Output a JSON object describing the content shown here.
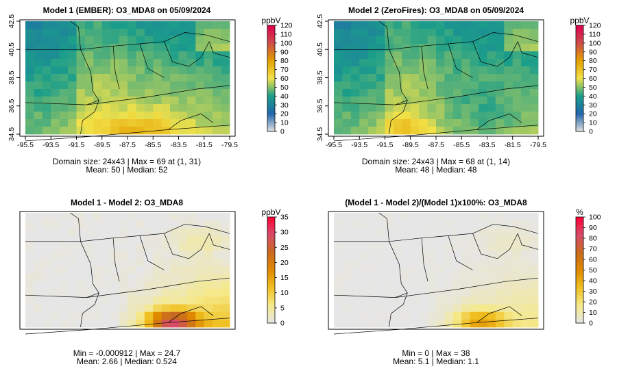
{
  "chart_data": [
    {
      "type": "heatmap",
      "id": "p1",
      "title": "Model 1 (EMBER): O3_MDA8 on 05/09/2024",
      "stats": [
        "Domain size: 24x43 | Max = 69 at (1, 31)",
        "Mean: 50 |  Median: 52"
      ],
      "x_ticks": [
        "-95.5",
        "-93.5",
        "-91.5",
        "-89.5",
        "-87.5",
        "-85.5",
        "-83.5",
        "-81.5",
        "-79.5"
      ],
      "y_ticks": [
        "34.5",
        "36.5",
        "38.5",
        "40.5",
        "42.5"
      ],
      "show_axis_ticks": true,
      "xlim": [
        -95.5,
        -79.5
      ],
      "ylim": [
        34.5,
        42.5
      ],
      "grid_dims": [
        24,
        43
      ],
      "value_range": [
        0,
        120
      ],
      "colorbar": {
        "unit": "ppbV",
        "ticks": [
          "0",
          "10",
          "20",
          "30",
          "40",
          "50",
          "60",
          "70",
          "80",
          "90",
          "100",
          "110",
          "120"
        ],
        "vmin": 0,
        "vmax": 120
      }
    },
    {
      "type": "heatmap",
      "id": "p2",
      "title": "Model 2 (ZeroFires): O3_MDA8 on 05/09/2024",
      "stats": [
        "Domain size: 24x43 | Max = 68 at (1, 14)",
        "Mean: 48 |  Median: 48"
      ],
      "x_ticks": [
        "-95.5",
        "-93.5",
        "-91.5",
        "-89.5",
        "-87.5",
        "-85.5",
        "-83.5",
        "-81.5",
        "-79.5"
      ],
      "y_ticks": [
        "34.5",
        "36.5",
        "38.5",
        "40.5",
        "42.5"
      ],
      "show_axis_ticks": true,
      "xlim": [
        -95.5,
        -79.5
      ],
      "ylim": [
        34.5,
        42.5
      ],
      "grid_dims": [
        24,
        43
      ],
      "value_range": [
        0,
        120
      ],
      "colorbar": {
        "unit": "ppbV",
        "ticks": [
          "0",
          "10",
          "20",
          "30",
          "40",
          "50",
          "60",
          "70",
          "80",
          "90",
          "100",
          "110",
          "120"
        ],
        "vmin": 0,
        "vmax": 120
      }
    },
    {
      "type": "heatmap",
      "id": "p3",
      "title": "Model 1 - Model 2: O3_MDA8",
      "stats": [
        "Min = -0.000912 | Max = 24.7",
        "Mean: 2.66 |  Median: 0.524"
      ],
      "x_ticks": [],
      "y_ticks": [],
      "show_axis_ticks": false,
      "xlim": [
        -95.5,
        -79.5
      ],
      "ylim": [
        34.5,
        42.5
      ],
      "grid_dims": [
        24,
        43
      ],
      "value_range": [
        -0.000912,
        24.7
      ],
      "colorbar": {
        "unit": "ppbV",
        "ticks": [
          "0",
          "5",
          "10",
          "15",
          "20",
          "25",
          "30",
          "35"
        ],
        "vmin": 0,
        "vmax": 35
      }
    },
    {
      "type": "heatmap",
      "id": "p4",
      "title": "(Model 1 - Model 2)/(Model 1)x100%: O3_MDA8",
      "stats": [
        "Min = 0 | Max = 38",
        "Mean: 5.1 |  Median: 1.1"
      ],
      "x_ticks": [],
      "y_ticks": [],
      "show_axis_ticks": false,
      "xlim": [
        -95.5,
        -79.5
      ],
      "ylim": [
        34.5,
        42.5
      ],
      "grid_dims": [
        24,
        43
      ],
      "value_range": [
        0,
        38
      ],
      "colorbar": {
        "unit": "%",
        "ticks": [
          "0",
          "10",
          "20",
          "30",
          "40",
          "50",
          "60",
          "70",
          "80",
          "90",
          "100"
        ],
        "vmin": 0,
        "vmax": 100
      }
    }
  ],
  "colors": {
    "scale_stops": [
      "#e0e0e0",
      "#2166ac",
      "#1b9e8a",
      "#f2e24a",
      "#e3a000",
      "#cc4c4c",
      "#e0004e"
    ],
    "diff_stops": [
      "#e6e6e6",
      "#f5e98a",
      "#f0c020",
      "#e08a00",
      "#c86a20",
      "#d84a6a",
      "#ff0033"
    ],
    "border": "#000000"
  }
}
